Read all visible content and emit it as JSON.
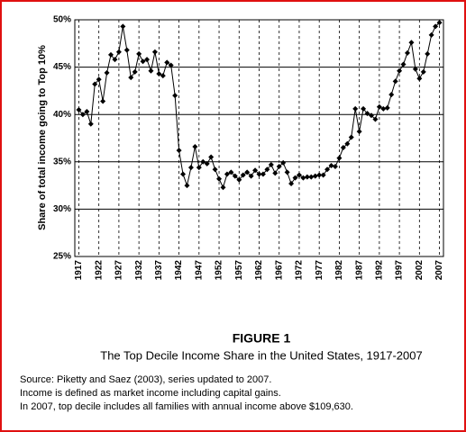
{
  "chart_data": {
    "type": "line",
    "y_label": "Share of total income going to Top 10%",
    "title": "FIGURE 1",
    "subtitle": "The Top Decile Income Share in the United States, 1917-2007",
    "notes": [
      "Source: Piketty and Saez (2003), series updated to 2007.",
      "Income is defined as market income including capital gains.",
      "In 2007, top decile includes all families with annual income above $109,630."
    ],
    "color": "#000000",
    "x": [
      1917,
      1918,
      1919,
      1920,
      1921,
      1922,
      1923,
      1924,
      1925,
      1926,
      1927,
      1928,
      1929,
      1930,
      1931,
      1932,
      1933,
      1934,
      1935,
      1936,
      1937,
      1938,
      1939,
      1940,
      1941,
      1942,
      1943,
      1944,
      1945,
      1946,
      1947,
      1948,
      1949,
      1950,
      1951,
      1952,
      1953,
      1954,
      1955,
      1956,
      1957,
      1958,
      1959,
      1960,
      1961,
      1962,
      1963,
      1964,
      1965,
      1966,
      1967,
      1968,
      1969,
      1970,
      1971,
      1972,
      1973,
      1974,
      1975,
      1976,
      1977,
      1978,
      1979,
      1980,
      1981,
      1982,
      1983,
      1984,
      1985,
      1986,
      1987,
      1988,
      1989,
      1990,
      1991,
      1992,
      1993,
      1994,
      1995,
      1996,
      1997,
      1998,
      1999,
      2000,
      2001,
      2002,
      2003,
      2004,
      2005,
      2006,
      2007
    ],
    "values": [
      40.5,
      40.0,
      40.3,
      39.0,
      43.2,
      43.7,
      41.4,
      44.4,
      46.3,
      45.8,
      46.6,
      49.3,
      46.8,
      43.9,
      44.5,
      46.4,
      45.6,
      45.8,
      44.6,
      46.6,
      44.3,
      44.1,
      45.5,
      45.2,
      42.0,
      36.2,
      33.7,
      32.5,
      34.4,
      36.6,
      34.4,
      35.0,
      34.8,
      35.5,
      34.2,
      33.2,
      32.3,
      33.7,
      33.9,
      33.5,
      33.1,
      33.6,
      33.9,
      33.5,
      34.1,
      33.7,
      33.7,
      34.2,
      34.7,
      33.8,
      34.5,
      34.9,
      33.9,
      32.7,
      33.3,
      33.6,
      33.3,
      33.4,
      33.4,
      33.5,
      33.6,
      33.6,
      34.2,
      34.6,
      34.5,
      35.4,
      36.5,
      36.9,
      37.6,
      40.6,
      38.2,
      40.6,
      40.1,
      39.9,
      39.5,
      40.8,
      40.6,
      40.7,
      42.1,
      43.5,
      44.6,
      45.3,
      46.5,
      47.6,
      44.8,
      43.8,
      44.5,
      46.4,
      48.4,
      49.3,
      49.7
    ],
    "xlim": [
      1916,
      2008
    ],
    "xticks": [
      1917,
      1922,
      1927,
      1932,
      1937,
      1942,
      1947,
      1952,
      1957,
      1962,
      1967,
      1972,
      1977,
      1982,
      1987,
      1992,
      1997,
      2002,
      2007
    ],
    "ylim": [
      25,
      50
    ],
    "yticks": [
      {
        "value": 25,
        "label": "25%"
      },
      {
        "value": 30,
        "label": "30%"
      },
      {
        "value": 35,
        "label": "35%"
      },
      {
        "value": 40,
        "label": "40%"
      },
      {
        "value": 45,
        "label": "45%"
      },
      {
        "value": 50,
        "label": "50%"
      }
    ],
    "grid": true
  }
}
